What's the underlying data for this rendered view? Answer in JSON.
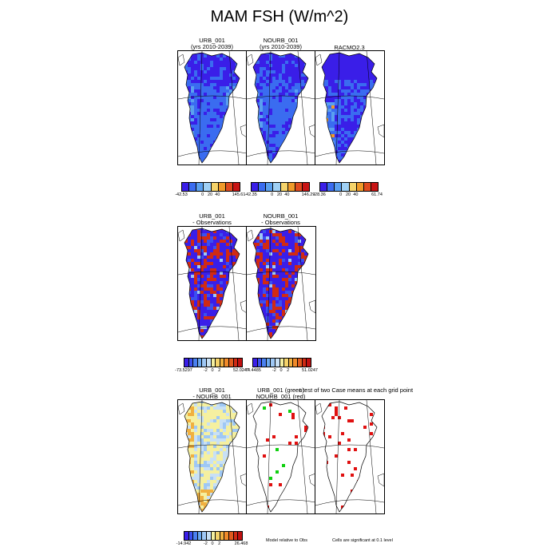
{
  "title": "MAM FSH (W/m^2)",
  "chart_data": [
    {
      "type": "heatmap",
      "title_line1": "URB_001",
      "title_line2": "(yrs 2010-2039)",
      "colorbar": {
        "min": "-42.53",
        "ticks": [
          "0",
          "20",
          "40"
        ],
        "max": "145.61"
      }
    },
    {
      "type": "heatmap",
      "title_line1": "NOURB_001",
      "title_line2": "(yrs 2010-2039)",
      "colorbar": {
        "min": "-42.35",
        "ticks": [
          "0",
          "20",
          "40"
        ],
        "max": "146.29"
      }
    },
    {
      "type": "heatmap",
      "title_line1": "RACMO2.3",
      "title_line2": "",
      "colorbar": {
        "min": "-28.36",
        "ticks": [
          "0",
          "20",
          "40"
        ],
        "max": "61.74"
      }
    },
    {
      "type": "heatmap",
      "title_line1": "URB_001",
      "title_line2": "- Observations",
      "colorbar": {
        "min": "-73.5297",
        "ticks": [
          "-2",
          "0",
          "2"
        ],
        "max": "52.0247"
      }
    },
    {
      "type": "heatmap",
      "title_line1": "NOURB_001",
      "title_line2": "- Observations",
      "colorbar": {
        "min": "-74.4485",
        "ticks": [
          "-2",
          "0",
          "2"
        ],
        "max": "51.0247"
      }
    },
    {
      "type": "heatmap",
      "title_line1": "URB_001",
      "title_line2": "- NOURB_001",
      "colorbar": {
        "min": "-14.942",
        "ticks": [
          "-2",
          "0",
          "2"
        ],
        "max": "26.468"
      }
    },
    {
      "type": "heatmap",
      "title_line1": "URB_001 (green)",
      "title_line2": "NOURB_001 (red)"
    },
    {
      "type": "heatmap",
      "title_line1": "t test of two Case means at each grid point",
      "title_line2": ""
    }
  ],
  "notes": {
    "model_relative": "Model relative to Obs",
    "significance": "Cells are significant at 0.1 level"
  },
  "colors": {
    "cbar_abs": [
      "#3a1ee8",
      "#3a6cf0",
      "#5aa0f0",
      "#9fd0f5",
      "#f5d36a",
      "#f09a2a",
      "#e04a1e",
      "#c81414"
    ],
    "cbar_diff": [
      "#3a1ee8",
      "#3a50f0",
      "#4a80f0",
      "#6aa8f0",
      "#9fc8f5",
      "#c8e0f5",
      "#f5f0a0",
      "#f5d36a",
      "#f0b040",
      "#f08a2a",
      "#e05a1e",
      "#d02a14",
      "#c01010"
    ]
  }
}
